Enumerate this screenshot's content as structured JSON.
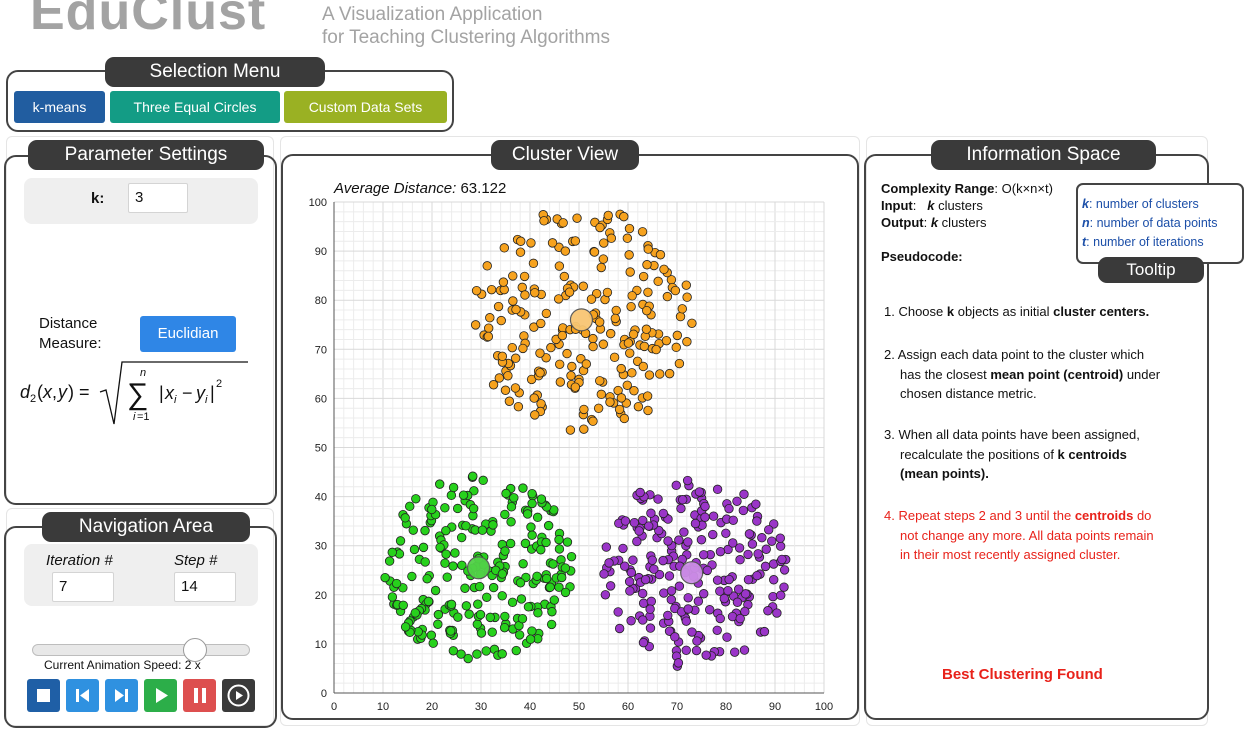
{
  "header": {
    "title": "EduClust",
    "subtitle_line1": "A Visualization Application",
    "subtitle_line2": "for Teaching Clustering Algorithms"
  },
  "annotations": {
    "selection_menu": "Selection Menu",
    "parameter_settings": "Parameter Settings",
    "cluster_view": "Cluster View",
    "information_space": "Information Space",
    "navigation_area": "Navigation Area",
    "tooltip": "Tooltip"
  },
  "selection_menu": {
    "algorithm": "k-means",
    "dataset": "Three Equal Circles",
    "custom": "Custom Data Sets",
    "colors": {
      "algorithm": "#215da0",
      "dataset": "#139c85",
      "custom": "#9ab123"
    }
  },
  "parameters": {
    "k_label": "k:",
    "k_value": "3",
    "distance_label_line1": "Distance",
    "distance_label_line2": "Measure:",
    "distance_button": "Euclidian"
  },
  "navigation": {
    "iteration_label": "Iteration #",
    "iteration_value": "7",
    "step_label": "Step #",
    "step_value": "14",
    "speed_label": "Current Animation Speed: 2 x",
    "speed_slider": 0.78,
    "controls": [
      {
        "icon": "stop-icon",
        "color": "#1f5fa6"
      },
      {
        "icon": "skip-back-icon",
        "color": "#2f91e0"
      },
      {
        "icon": "skip-forward-icon",
        "color": "#2f91e0"
      },
      {
        "icon": "play-icon",
        "color": "#2cae49"
      },
      {
        "icon": "pause-icon",
        "color": "#dd4f4f"
      },
      {
        "icon": "play-circle-icon",
        "color": "#3a3a3a"
      }
    ]
  },
  "cluster_view": {
    "avg_label": "Average Distance:",
    "avg_value": "63.122"
  },
  "info": {
    "complexity_label": "Complexity Range",
    "complexity_value": ": O(k×n×t)",
    "input_label": "Input",
    "input_value": "k clusters",
    "output_label": "Output",
    "output_value": "k clusters",
    "pseudocode_label": "Pseudocode:",
    "step1_a": "1. Choose ",
    "step1_b": "k",
    "step1_c": " objects as initial ",
    "step1_d": "cluster centers.",
    "step2_a": "2. Assign each data point to the cluster which",
    "step2_b": "has the closest ",
    "step2_c": "mean point (centroid)",
    "step2_d": " under",
    "step2_e": "chosen distance metric.",
    "step3_a": "3. When all data points have been assigned,",
    "step3_b": "recalculate the positions of ",
    "step3_c": "k centroids",
    "step3_d": "(mean points).",
    "step4_a": "4. Repeat steps 2 and 3 until the ",
    "step4_b": "centroids",
    "step4_c": " do",
    "step4_d": "not change any more. All data points remain",
    "step4_e": "in their most recently assigned cluster.",
    "result": "Best Clustering Found"
  },
  "tooltip": {
    "k_key": "k",
    "k_text": ": number of clusters",
    "n_key": "n",
    "n_text": ": number of data points",
    "t_key": "t",
    "t_text": ": number of iterations"
  },
  "chart_data": {
    "type": "scatter",
    "title": "",
    "xlabel": "",
    "ylabel": "",
    "xlim": [
      0,
      100
    ],
    "ylim": [
      0,
      100
    ],
    "xticks": [
      0,
      10,
      20,
      30,
      40,
      50,
      60,
      70,
      80,
      90,
      100
    ],
    "yticks": [
      0,
      10,
      20,
      30,
      40,
      50,
      60,
      70,
      80,
      90,
      100
    ],
    "grid": true,
    "clusters": [
      {
        "color": "#f6a21e",
        "centroid_color": "#f8c673",
        "centroid": [
          50.5,
          76.0
        ],
        "radius": 23,
        "count": 230,
        "seed": 11
      },
      {
        "color": "#27d11c",
        "centroid_color": "#52d148",
        "centroid": [
          29.5,
          25.5
        ],
        "radius": 19.5,
        "count": 250,
        "seed": 29
      },
      {
        "color": "#9a35c8",
        "centroid_color": "#cc8ee6",
        "centroid": [
          73.0,
          24.5
        ],
        "radius": 19.5,
        "count": 240,
        "seed": 47
      }
    ]
  }
}
